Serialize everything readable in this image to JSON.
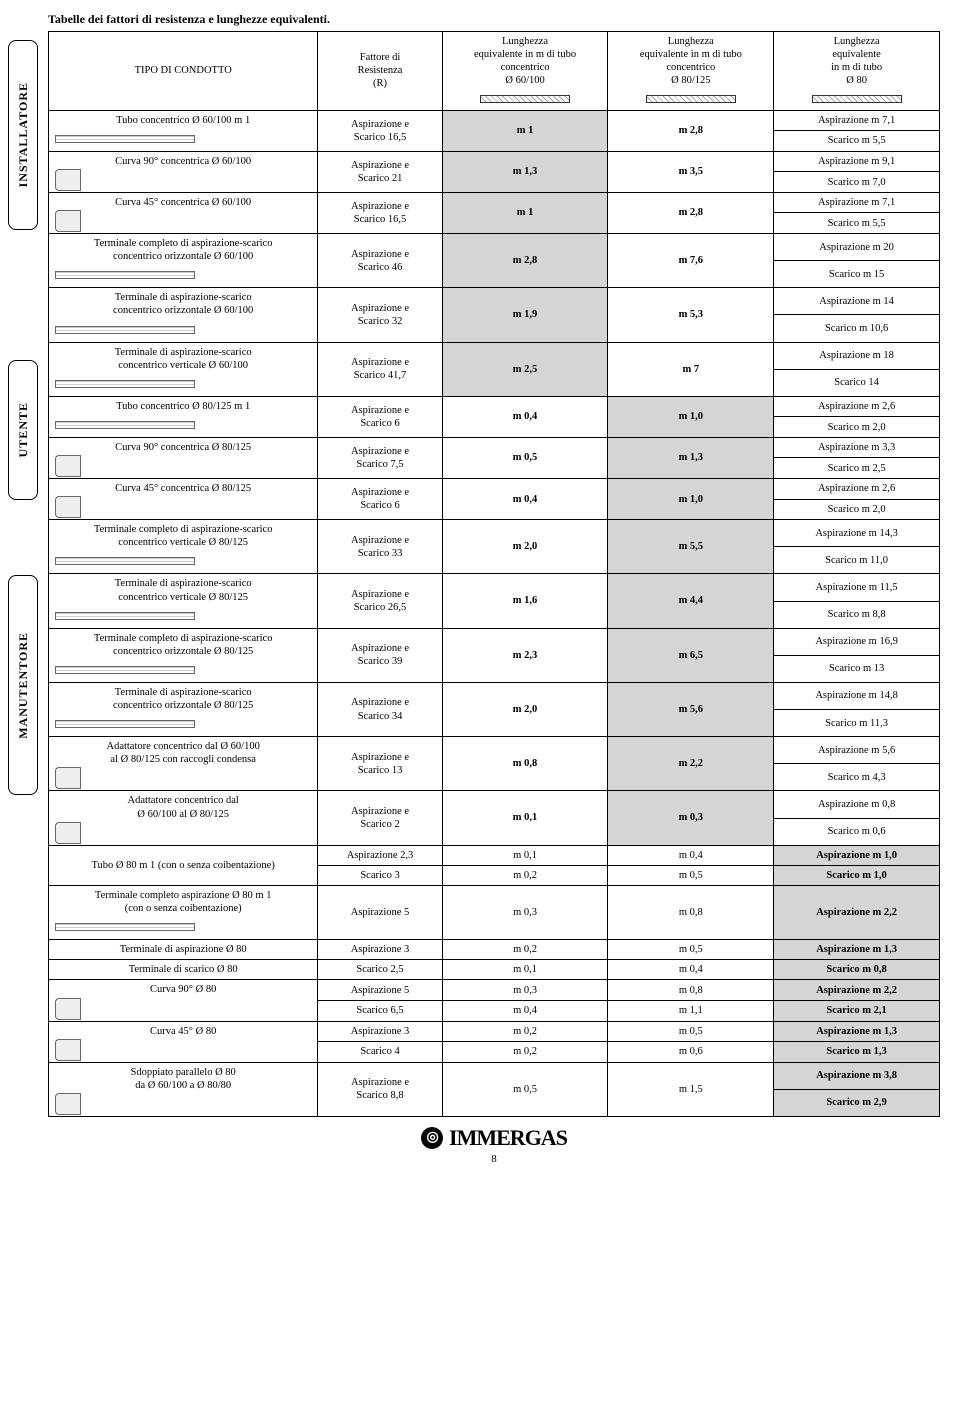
{
  "title": "Tabelle dei fattori di resistenza e lunghezze equivalenti.",
  "tabs": {
    "installatore": "INSTALLATORE",
    "utente": "UTENTE",
    "manutentore": "MANUTENTORE"
  },
  "headers": {
    "tipo": "TIPO DI CONDOTTO",
    "fattore": "Fattore di\nResistenza\n(R)",
    "col60": "Lunghezza\nequivalente in m di tubo\nconcentrico\nØ 60/100",
    "col80125": "Lunghezza\nequivalente in m di tubo\nconcentrico\nØ 80/125",
    "col80": "Lunghezza\nequivalente\nin m di tubo\nØ 80"
  },
  "rows": [
    {
      "tipo": "Tubo concentrico Ø 60/100 m 1",
      "diagram": "pipe",
      "r": "Aspirazione e\nScarico 16,5",
      "c60": "m 1",
      "c80125": "m 2,8",
      "c80": [
        "Aspirazione m 7,1",
        "Scarico m 5,5"
      ],
      "shade": "c60"
    },
    {
      "tipo": "Curva 90° concentrica Ø 60/100",
      "diagram": "elbow",
      "r": "Aspirazione e\nScarico 21",
      "c60": "m 1,3",
      "c80125": "m 3,5",
      "c80": [
        "Aspirazione m 9,1",
        "Scarico m 7,0"
      ],
      "shade": "c60"
    },
    {
      "tipo": "Curva 45° concentrica Ø 60/100",
      "diagram": "elbow",
      "r": "Aspirazione e\nScarico 16,5",
      "c60": "m 1",
      "c80125": "m 2,8",
      "c80": [
        "Aspirazione m 7,1",
        "Scarico m 5,5"
      ],
      "shade": "c60"
    },
    {
      "tipo": "Terminale completo di aspirazione-scarico\nconcentrico orizzontale Ø 60/100",
      "diagram": "pipe",
      "r": "Aspirazione e\nScarico 46",
      "c60": "m 2,8",
      "c80125": "m 7,6",
      "c80": [
        "Aspirazione m 20",
        "Scarico m 15"
      ],
      "shade": "c60"
    },
    {
      "tipo": "Terminale di aspirazione-scarico\nconcentrico orizzontale Ø 60/100",
      "diagram": "pipe",
      "r": "Aspirazione e\nScarico 32",
      "c60": "m 1,9",
      "c80125": "m 5,3",
      "c80": [
        "Aspirazione m 14",
        "Scarico m 10,6"
      ],
      "shade": "c60"
    },
    {
      "tipo": "Terminale di aspirazione-scarico\nconcentrico verticale Ø 60/100",
      "diagram": "pipe",
      "r": "Aspirazione e\nScarico 41,7",
      "c60": "m 2,5",
      "c80125": "m 7",
      "c80": [
        "Aspirazione m 18",
        "Scarico 14"
      ],
      "shade": "c60"
    },
    {
      "tipo": "Tubo concentrico Ø 80/125 m 1",
      "diagram": "pipe",
      "r": "Aspirazione e\nScarico 6",
      "c60": "m 0,4",
      "c80125": "m 1,0",
      "c80": [
        "Aspirazione m 2,6",
        "Scarico m 2,0"
      ],
      "shade": "c80125"
    },
    {
      "tipo": "Curva 90° concentrica Ø 80/125",
      "diagram": "elbow",
      "r": "Aspirazione e\nScarico 7,5",
      "c60": "m 0,5",
      "c80125": "m 1,3",
      "c80": [
        "Aspirazione m 3,3",
        "Scarico m 2,5"
      ],
      "shade": "c80125"
    },
    {
      "tipo": "Curva 45° concentrica Ø 80/125",
      "diagram": "elbow",
      "r": "Aspirazione e\nScarico 6",
      "c60": "m 0,4",
      "c80125": "m 1,0",
      "c80": [
        "Aspirazione m 2,6",
        "Scarico m 2,0"
      ],
      "shade": "c80125"
    },
    {
      "tipo": "Terminale completo di aspirazione-scarico\nconcentrico verticale Ø 80/125",
      "diagram": "pipe",
      "r": "Aspirazione e\nScarico 33",
      "c60": "m 2,0",
      "c80125": "m 5,5",
      "c80": [
        "Aspirazione m 14,3",
        "Scarico m 11,0"
      ],
      "shade": "c80125"
    },
    {
      "tipo": "Terminale di aspirazione-scarico\nconcentrico verticale Ø 80/125",
      "diagram": "pipe",
      "r": "Aspirazione e\nScarico 26,5",
      "c60": "m 1,6",
      "c80125": "m 4,4",
      "c80": [
        "Aspirazione m 11,5",
        "Scarico m 8,8"
      ],
      "shade": "c80125"
    },
    {
      "tipo": "Terminale completo di aspirazione-scarico\nconcentrico orizzontale Ø 80/125",
      "diagram": "pipe",
      "r": "Aspirazione e\nScarico 39",
      "c60": "m 2,3",
      "c80125": "m 6,5",
      "c80": [
        "Aspirazione m 16,9",
        "Scarico m 13"
      ],
      "shade": "c80125"
    },
    {
      "tipo": "Terminale di aspirazione-scarico\nconcentrico orizzontale Ø 80/125",
      "diagram": "pipe",
      "r": "Aspirazione e\nScarico 34",
      "c60": "m 2,0",
      "c80125": "m 5,6",
      "c80": [
        "Aspirazione m 14,8",
        "Scarico m 11,3"
      ],
      "shade": "c80125"
    },
    {
      "tipo": "Adattatore concentrico dal Ø 60/100\nal Ø 80/125 con raccogli condensa",
      "diagram": "elbow",
      "r": "Aspirazione e\nScarico 13",
      "c60": "m 0,8",
      "c80125": "m 2,2",
      "c80": [
        "Aspirazione m 5,6",
        "Scarico m 4,3"
      ],
      "shade": "c80125"
    },
    {
      "tipo": "Adattatore concentrico dal\nØ 60/100 al Ø 80/125",
      "diagram": "elbow",
      "r": "Aspirazione e\nScarico 2",
      "c60": "m 0,1",
      "c80125": "m 0,3",
      "c80": [
        "Aspirazione m 0,8",
        "Scarico m 0,6"
      ],
      "shade": "c80125"
    }
  ],
  "simpleRows": [
    {
      "tipo": "Tubo Ø 80 m 1 (con o senza coibentazione)",
      "span": 2,
      "sub": [
        {
          "r": "Aspirazione 2,3",
          "c60": "m 0,1",
          "c80125": "m 0,4",
          "c80": "Aspirazione m 1,0",
          "bold": true
        },
        {
          "r": "Scarico 3",
          "c60": "m 0,2",
          "c80125": "m 0,5",
          "c80": "Scarico m 1,0",
          "bold": true
        }
      ]
    },
    {
      "tipo": "Terminale completo aspirazione Ø 80 m 1\n(con o senza coibentazione)",
      "diagram": "pipe",
      "span": 1,
      "sub": [
        {
          "r": "Aspirazione 5",
          "c60": "m 0,3",
          "c80125": "m 0,8",
          "c80": "Aspirazione m 2,2",
          "bold": true
        }
      ]
    },
    {
      "tipo": "Terminale di aspirazione Ø 80",
      "span": 1,
      "sub": [
        {
          "r": "Aspirazione 3",
          "c60": "m 0,2",
          "c80125": "m 0,5",
          "c80": "Aspirazione m 1,3",
          "bold": true
        }
      ]
    },
    {
      "tipo": "Terminale di scarico Ø 80",
      "span": 1,
      "sub": [
        {
          "r": "Scarico 2,5",
          "c60": "m 0,1",
          "c80125": "m 0,4",
          "c80": "Scarico m 0,8",
          "bold": true
        }
      ]
    },
    {
      "tipo": "Curva 90° Ø 80",
      "diagram": "elbow",
      "span": 2,
      "sub": [
        {
          "r": "Aspirazione 5",
          "c60": "m 0,3",
          "c80125": "m 0,8",
          "c80": "Aspirazione m 2,2",
          "bold": true
        },
        {
          "r": "Scarico 6,5",
          "c60": "m 0,4",
          "c80125": "m 1,1",
          "c80": "Scarico m 2,1",
          "bold": true
        }
      ]
    },
    {
      "tipo": "Curva 45° Ø 80",
      "diagram": "elbow",
      "span": 2,
      "sub": [
        {
          "r": "Aspirazione 3",
          "c60": "m 0,2",
          "c80125": "m 0,5",
          "c80": "Aspirazione m 1,3",
          "bold": true
        },
        {
          "r": "Scarico 4",
          "c60": "m 0,2",
          "c80125": "m 0,6",
          "c80": "Scarico m 1,3",
          "bold": true
        }
      ]
    },
    {
      "tipo": "Sdoppiato parallelo Ø 80\nda Ø 60/100 a Ø 80/80",
      "diagram": "elbow",
      "span": 2,
      "mergedR": "Aspirazione e\nScarico 8,8",
      "mergedC60": "m 0,5",
      "mergedC80125": "m 1,5",
      "sub": [
        {
          "c80": "Aspirazione m 3,8",
          "bold": true
        },
        {
          "c80": "Scarico m 2,9",
          "bold": true
        }
      ]
    }
  ],
  "footer": {
    "brand": "IMMERGAS",
    "page": "8"
  }
}
